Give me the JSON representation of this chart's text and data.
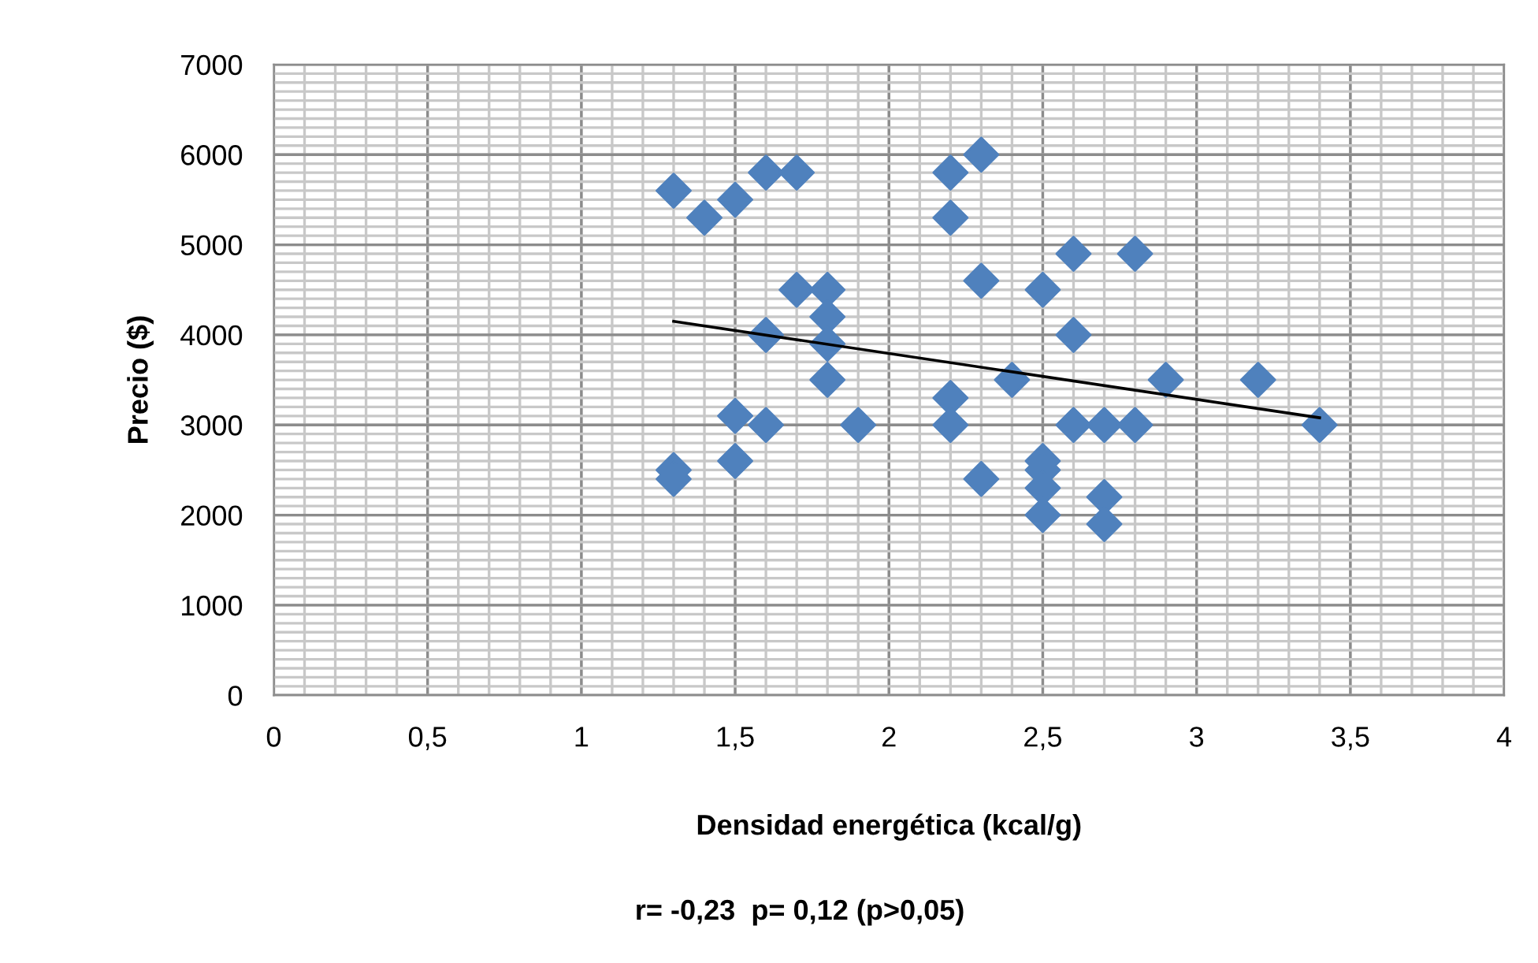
{
  "chart_data": {
    "type": "scatter",
    "xlabel": "Densidad energética (kcal/g)",
    "ylabel": "Precio ($)",
    "annotations": [
      "r= -0,23  p= 0,12 (p>0,05)"
    ],
    "xlim": [
      0,
      4
    ],
    "ylim": [
      0,
      7000
    ],
    "xticks": [
      0,
      {
        "value": 0.5,
        "label": "0,5"
      },
      1,
      {
        "value": 1.5,
        "label": "1,5"
      },
      2,
      {
        "value": 2.5,
        "label": "2,5"
      },
      3,
      {
        "value": 3.5,
        "label": "3,5"
      },
      4
    ],
    "yticks": [
      0,
      1000,
      2000,
      3000,
      4000,
      5000,
      6000,
      7000
    ],
    "grid": true,
    "marker": "diamond",
    "series": [
      {
        "color": "#4f81bd",
        "x": [
          1.3,
          1.4,
          1.5,
          1.6,
          1.7,
          2.2,
          2.3,
          2.2,
          2.6,
          2.8,
          1.7,
          1.8,
          2.3,
          2.5,
          1.8,
          1.6,
          2.6,
          1.8,
          1.8,
          2.4,
          2.9,
          3.2,
          2.2,
          1.5,
          1.6,
          1.9,
          2.2,
          2.6,
          2.7,
          2.8,
          3.4,
          1.3,
          1.3,
          1.5,
          2.3,
          2.5,
          2.5,
          2.5,
          2.5,
          2.7,
          2.7
        ],
        "values": [
          5600,
          5300,
          5500,
          5800,
          5800,
          5800,
          6000,
          5300,
          4900,
          4900,
          4500,
          4500,
          4600,
          4500,
          4200,
          4000,
          4000,
          3900,
          3500,
          3500,
          3500,
          3500,
          3300,
          3100,
          3000,
          3000,
          3000,
          3000,
          3000,
          3000,
          3000,
          2500,
          2400,
          2600,
          2400,
          2600,
          2500,
          2300,
          2000,
          2200,
          1900
        ]
      },
      {
        "type": "line",
        "color": "#000000",
        "x": [
          1.3,
          3.4
        ],
        "values": [
          4150,
          3080
        ],
        "marker": "none"
      }
    ]
  }
}
